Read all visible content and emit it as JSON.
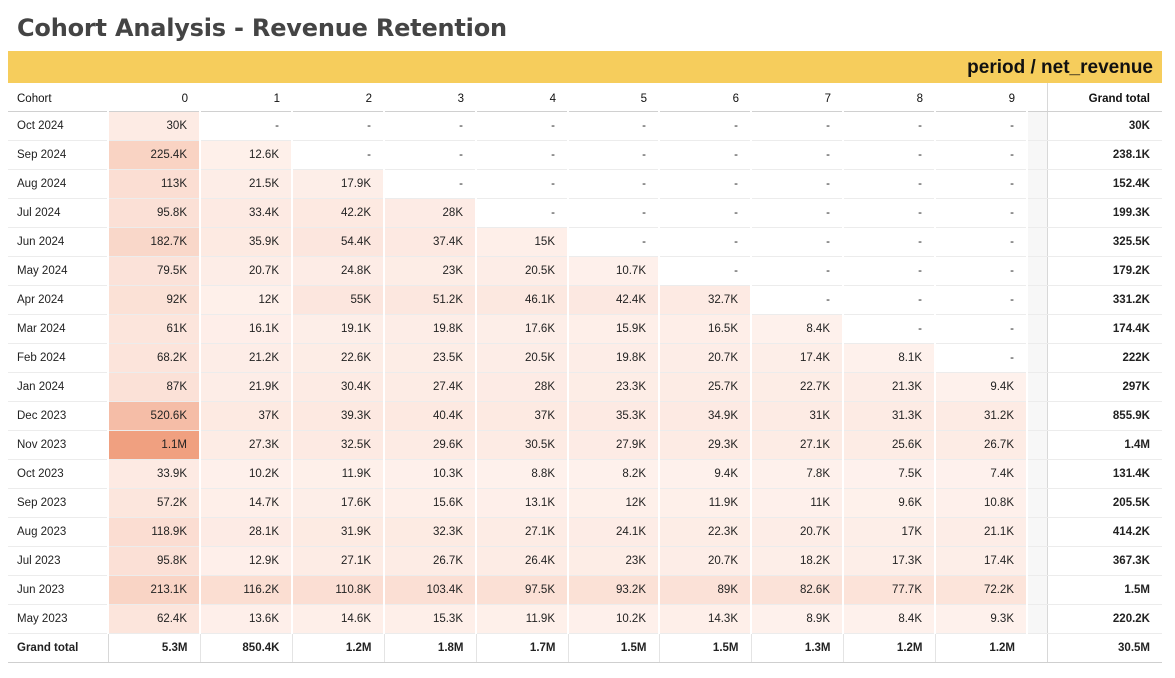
{
  "title": "Cohort Analysis - Revenue Retention",
  "banner_label": "period / net_revenue",
  "colors": {
    "banner": "#f6cd5c",
    "heat_low": "#fff7f4",
    "heat_high": "#f0a080"
  },
  "table": {
    "corner_label": "Cohort",
    "periods": [
      "0",
      "1",
      "2",
      "3",
      "4",
      "5",
      "6",
      "7",
      "8",
      "9"
    ],
    "grand_total_label": "Grand total",
    "rows": [
      {
        "cohort": "Oct 2024",
        "values": [
          "30K",
          "-",
          "-",
          "-",
          "-",
          "-",
          "-",
          "-",
          "-",
          "-"
        ],
        "total": "30K"
      },
      {
        "cohort": "Sep 2024",
        "values": [
          "225.4K",
          "12.6K",
          "-",
          "-",
          "-",
          "-",
          "-",
          "-",
          "-",
          "-"
        ],
        "total": "238.1K"
      },
      {
        "cohort": "Aug 2024",
        "values": [
          "113K",
          "21.5K",
          "17.9K",
          "-",
          "-",
          "-",
          "-",
          "-",
          "-",
          "-"
        ],
        "total": "152.4K"
      },
      {
        "cohort": "Jul 2024",
        "values": [
          "95.8K",
          "33.4K",
          "42.2K",
          "28K",
          "-",
          "-",
          "-",
          "-",
          "-",
          "-"
        ],
        "total": "199.3K"
      },
      {
        "cohort": "Jun 2024",
        "values": [
          "182.7K",
          "35.9K",
          "54.4K",
          "37.4K",
          "15K",
          "-",
          "-",
          "-",
          "-",
          "-"
        ],
        "total": "325.5K"
      },
      {
        "cohort": "May 2024",
        "values": [
          "79.5K",
          "20.7K",
          "24.8K",
          "23K",
          "20.5K",
          "10.7K",
          "-",
          "-",
          "-",
          "-"
        ],
        "total": "179.2K"
      },
      {
        "cohort": "Apr 2024",
        "values": [
          "92K",
          "12K",
          "55K",
          "51.2K",
          "46.1K",
          "42.4K",
          "32.7K",
          "-",
          "-",
          "-"
        ],
        "total": "331.2K"
      },
      {
        "cohort": "Mar 2024",
        "values": [
          "61K",
          "16.1K",
          "19.1K",
          "19.8K",
          "17.6K",
          "15.9K",
          "16.5K",
          "8.4K",
          "-",
          "-"
        ],
        "total": "174.4K"
      },
      {
        "cohort": "Feb 2024",
        "values": [
          "68.2K",
          "21.2K",
          "22.6K",
          "23.5K",
          "20.5K",
          "19.8K",
          "20.7K",
          "17.4K",
          "8.1K",
          "-"
        ],
        "total": "222K"
      },
      {
        "cohort": "Jan 2024",
        "values": [
          "87K",
          "21.9K",
          "30.4K",
          "27.4K",
          "28K",
          "23.3K",
          "25.7K",
          "22.7K",
          "21.3K",
          "9.4K"
        ],
        "total": "297K"
      },
      {
        "cohort": "Dec 2023",
        "values": [
          "520.6K",
          "37K",
          "39.3K",
          "40.4K",
          "37K",
          "35.3K",
          "34.9K",
          "31K",
          "31.3K",
          "31.2K"
        ],
        "total": "855.9K"
      },
      {
        "cohort": "Nov 2023",
        "values": [
          "1.1M",
          "27.3K",
          "32.5K",
          "29.6K",
          "30.5K",
          "27.9K",
          "29.3K",
          "27.1K",
          "25.6K",
          "26.7K"
        ],
        "total": "1.4M"
      },
      {
        "cohort": "Oct 2023",
        "values": [
          "33.9K",
          "10.2K",
          "11.9K",
          "10.3K",
          "8.8K",
          "8.2K",
          "9.4K",
          "7.8K",
          "7.5K",
          "7.4K"
        ],
        "total": "131.4K"
      },
      {
        "cohort": "Sep 2023",
        "values": [
          "57.2K",
          "14.7K",
          "17.6K",
          "15.6K",
          "13.1K",
          "12K",
          "11.9K",
          "11K",
          "9.6K",
          "10.8K"
        ],
        "total": "205.5K"
      },
      {
        "cohort": "Aug 2023",
        "values": [
          "118.9K",
          "28.1K",
          "31.9K",
          "32.3K",
          "27.1K",
          "24.1K",
          "22.3K",
          "20.7K",
          "17K",
          "21.1K"
        ],
        "total": "414.2K"
      },
      {
        "cohort": "Jul 2023",
        "values": [
          "95.8K",
          "12.9K",
          "27.1K",
          "26.7K",
          "26.4K",
          "23K",
          "20.7K",
          "18.2K",
          "17.3K",
          "17.4K"
        ],
        "total": "367.3K"
      },
      {
        "cohort": "Jun 2023",
        "values": [
          "213.1K",
          "116.2K",
          "110.8K",
          "103.4K",
          "97.5K",
          "93.2K",
          "89K",
          "82.6K",
          "77.7K",
          "72.2K"
        ],
        "total": "1.5M"
      },
      {
        "cohort": "May 2023",
        "values": [
          "62.4K",
          "13.6K",
          "14.6K",
          "15.3K",
          "11.9K",
          "10.2K",
          "14.3K",
          "8.9K",
          "8.4K",
          "9.3K"
        ],
        "total": "220.2K"
      }
    ],
    "grand_total_row": {
      "label": "Grand total",
      "values": [
        "5.3M",
        "850.4K",
        "1.2M",
        "1.8M",
        "1.7M",
        "1.5M",
        "1.5M",
        "1.3M",
        "1.2M",
        "1.2M"
      ],
      "total": "30.5M"
    }
  }
}
